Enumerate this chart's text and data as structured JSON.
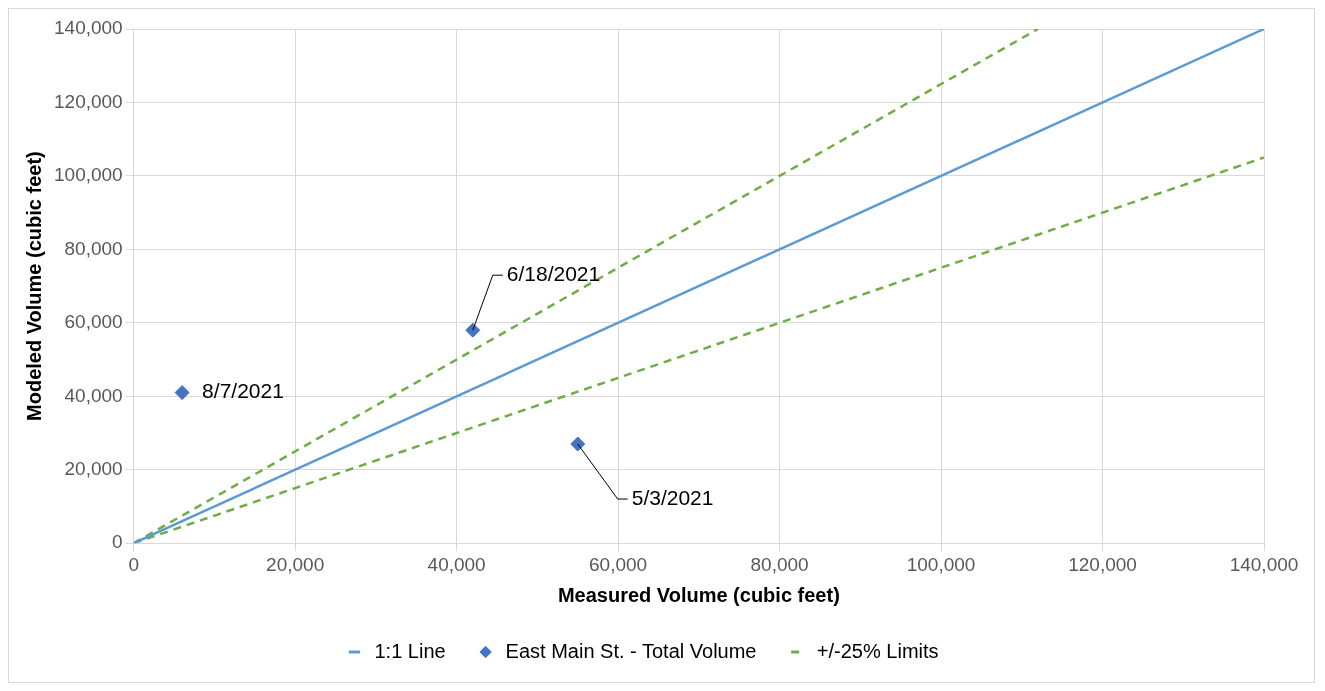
{
  "chart_data": {
    "type": "scatter",
    "xlabel": "Measured Volume (cubic feet)",
    "ylabel": "Modeled Volume (cubic feet)",
    "xlim": [
      0,
      140000
    ],
    "ylim": [
      0,
      140000
    ],
    "xticks": [
      {
        "value": 0,
        "label": "0"
      },
      {
        "value": 20000,
        "label": "20,000"
      },
      {
        "value": 40000,
        "label": "40,000"
      },
      {
        "value": 60000,
        "label": "60,000"
      },
      {
        "value": 80000,
        "label": "80,000"
      },
      {
        "value": 100000,
        "label": "100,000"
      },
      {
        "value": 120000,
        "label": "120,000"
      },
      {
        "value": 140000,
        "label": "140,000"
      }
    ],
    "yticks": [
      {
        "value": 0,
        "label": "0"
      },
      {
        "value": 20000,
        "label": "20,000"
      },
      {
        "value": 40000,
        "label": "40,000"
      },
      {
        "value": 60000,
        "label": "60,000"
      },
      {
        "value": 80000,
        "label": "80,000"
      },
      {
        "value": 100000,
        "label": "100,000"
      },
      {
        "value": 120000,
        "label": "120,000"
      },
      {
        "value": 140000,
        "label": "140,000"
      }
    ],
    "series": [
      {
        "name": "1:1 Line",
        "type": "line",
        "color": "#5b9bd5",
        "line_style": "solid",
        "marker": "none",
        "x": [
          0,
          140000
        ],
        "values": [
          0,
          140000
        ]
      },
      {
        "name": "East Main St. - Total Volume",
        "type": "scatter",
        "color": "#4472c4",
        "marker": "diamond",
        "x": [
          6000,
          42000,
          55000
        ],
        "values": [
          41000,
          58000,
          27000
        ]
      },
      {
        "name": "+/-25% Limits",
        "type": "line",
        "color": "#70ad47",
        "line_style": "dashed",
        "marker": "none",
        "x": [
          0,
          112000,
          null,
          0,
          140000
        ],
        "values": [
          0,
          140000,
          null,
          0,
          105000
        ]
      }
    ],
    "annotations": [
      {
        "text": "8/7/2021",
        "x": 6000,
        "y": 41000
      },
      {
        "text": "6/18/2021",
        "x": 42000,
        "y": 58000
      },
      {
        "text": "5/3/2021",
        "x": 55000,
        "y": 27000
      }
    ],
    "grid": true,
    "legend": "bottom"
  }
}
